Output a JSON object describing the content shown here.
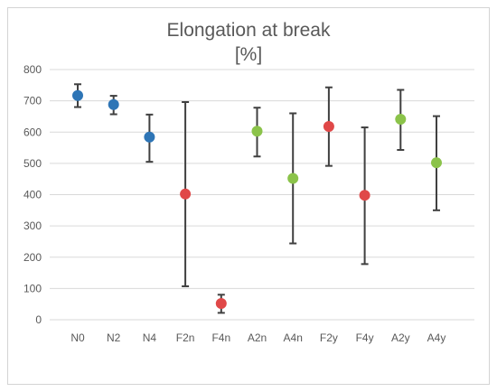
{
  "chart_data": {
    "type": "scatter",
    "title_line1": "Elongation at break",
    "title_line2": "[%]",
    "xlabel": "",
    "ylabel": "",
    "ylim": [
      0,
      800
    ],
    "yticks": [
      0,
      100,
      200,
      300,
      400,
      500,
      600,
      700,
      800
    ],
    "grid": true,
    "legend": "none",
    "categories": [
      "N0",
      "N2",
      "N4",
      "F2n",
      "F4n",
      "A2n",
      "A4n",
      "F2y",
      "F4y",
      "A2y",
      "A4y"
    ],
    "values": [
      717,
      688,
      584,
      402,
      52,
      603,
      452,
      618,
      398,
      641,
      502
    ],
    "error_low": [
      680,
      657,
      505,
      107,
      22,
      522,
      244,
      492,
      178,
      543,
      350
    ],
    "error_high": [
      753,
      716,
      656,
      696,
      80,
      678,
      660,
      743,
      615,
      735,
      651
    ],
    "point_colors": [
      "#2E75B6",
      "#2E75B6",
      "#2E75B6",
      "#E04848",
      "#E04848",
      "#8BC34A",
      "#8BC34A",
      "#E04848",
      "#E04848",
      "#8BC34A",
      "#8BC34A"
    ],
    "colors": {
      "blue": "#2E75B6",
      "red": "#E04848",
      "green": "#8BC34A",
      "error_bar": "#404040"
    }
  }
}
